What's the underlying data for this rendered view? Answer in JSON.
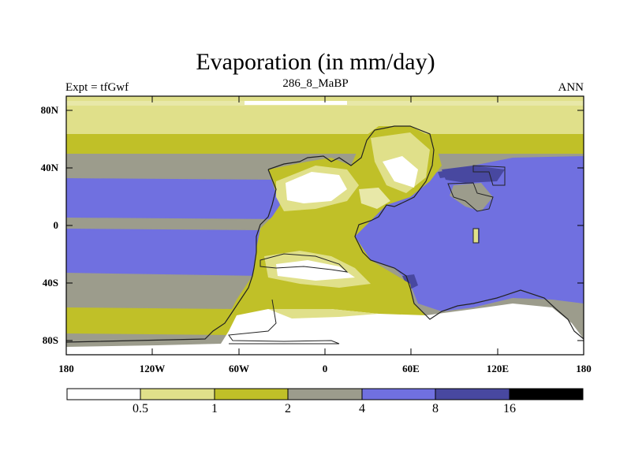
{
  "title": "Evaporation (in mm/day)",
  "subtitle_left": "Expt = tfGwf",
  "subtitle_center": "286_8_MaBP",
  "subtitle_right": "ANN",
  "lat_labels": [
    "80N",
    "40N",
    "0",
    "40S",
    "80S"
  ],
  "lon_labels": [
    "180",
    "120W",
    "60W",
    "0",
    "60E",
    "120E",
    "180"
  ],
  "colorbar": {
    "levels": [
      "0.5",
      "1",
      "2",
      "4",
      "8",
      "16"
    ],
    "colors": [
      "#ffffff",
      "#e0e08a",
      "#c0c028",
      "#9c9c8c",
      "#7070e0",
      "#4848a0",
      "#000000"
    ]
  }
}
